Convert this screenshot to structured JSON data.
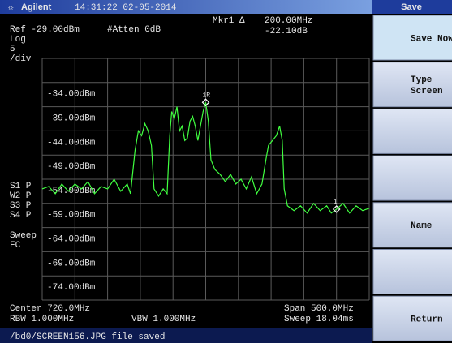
{
  "top_bar": {
    "brand": "Agilent",
    "datetime": "14:31:22 02-05-2014",
    "menu_title": "Save"
  },
  "header": {
    "ref": "Ref -29.00dBm",
    "atten": "#Atten 0dB",
    "marker": "Mkr1 Δ",
    "marker_freq": "200.00MHz",
    "marker_delta": "-22.10dB"
  },
  "left_labels": {
    "scale_type": "Log",
    "scale_value": "5",
    "scale_unit": "/div",
    "sweep": "Sweep",
    "sweep_mode": "FC"
  },
  "traces": [
    {
      "label": "S1 P",
      "color": "#e0e0e0"
    },
    {
      "label": "W2 P",
      "color": "#e8e840"
    },
    {
      "label": "S3 P",
      "color": "#6070ff"
    },
    {
      "label": "S4 P",
      "color": "#e060e0"
    }
  ],
  "footer": {
    "center": "Center 720.0MHz",
    "rbw": "RBW 1.000MHz",
    "vbw": "VBW 1.000MHz",
    "span": "Span 500.0MHz",
    "sweep": "Sweep 18.04ms"
  },
  "status": "/bd0/SCREEN156.JPG file saved",
  "softkeys": [
    {
      "lines": [
        "Save Now"
      ],
      "active": true
    },
    {
      "lines": [
        "Type",
        "Screen"
      ]
    },
    {
      "lines": []
    },
    {
      "lines": []
    },
    {
      "lines": [
        "Name"
      ]
    },
    {
      "lines": []
    },
    {
      "lines": [
        "Return"
      ]
    }
  ],
  "chart_data": {
    "type": "line",
    "color": "#40ff40",
    "xlim": [
      470,
      970
    ],
    "ylim": [
      -79,
      -29
    ],
    "yticks": [
      {
        "value": -34,
        "label": "-34.00dBm"
      },
      {
        "value": -39,
        "label": "-39.00dBm"
      },
      {
        "value": -44,
        "label": "-44.00dBm"
      },
      {
        "value": -49,
        "label": "-49.00dBm"
      },
      {
        "value": -54,
        "label": "-54.00dBm"
      },
      {
        "value": -59,
        "label": "-59.00dBm"
      },
      {
        "value": -64,
        "label": "-64.00dBm"
      },
      {
        "value": -69,
        "label": "-69.00dBm"
      },
      {
        "value": -74,
        "label": "-74.00dBm"
      }
    ],
    "x": [
      470,
      480,
      490,
      500,
      510,
      520,
      530,
      540,
      550,
      560,
      570,
      580,
      590,
      600,
      605,
      612,
      617,
      622,
      627,
      632,
      637,
      641,
      648,
      655,
      661,
      665,
      668,
      672,
      676,
      680,
      684,
      688,
      692,
      696,
      700,
      704,
      708,
      712,
      716,
      720,
      724,
      728,
      734,
      742,
      750,
      758,
      766,
      774,
      782,
      790,
      798,
      806,
      812,
      816,
      822,
      828,
      833,
      837,
      840,
      845,
      855,
      865,
      875,
      885,
      895,
      905,
      912,
      920,
      930,
      940,
      950,
      960,
      970
    ],
    "values": [
      -56,
      -55.5,
      -57,
      -55,
      -56.5,
      -55,
      -56,
      -54.5,
      -57,
      -55.5,
      -56,
      -54,
      -56.5,
      -55,
      -57,
      -48,
      -44,
      -45,
      -42.5,
      -44,
      -47,
      -56,
      -57.5,
      -56,
      -57,
      -45,
      -40,
      -41.5,
      -39,
      -44,
      -43,
      -46,
      -45.5,
      -42,
      -41,
      -43,
      -46,
      -43,
      -40,
      -38.1,
      -42,
      -50,
      -52,
      -53,
      -54.5,
      -53,
      -55,
      -54,
      -56,
      -53.5,
      -57,
      -55,
      -50,
      -47,
      -46,
      -45,
      -43,
      -46,
      -56,
      -59.5,
      -60.5,
      -59.5,
      -61,
      -59,
      -60.5,
      -59.5,
      -61,
      -60.2,
      -59,
      -61,
      -59.5,
      -60.5,
      -60
    ],
    "markers": [
      {
        "label": "1R",
        "x": 720,
        "value": -38.1
      },
      {
        "label": "1",
        "x": 920,
        "value": -60.2
      }
    ]
  }
}
